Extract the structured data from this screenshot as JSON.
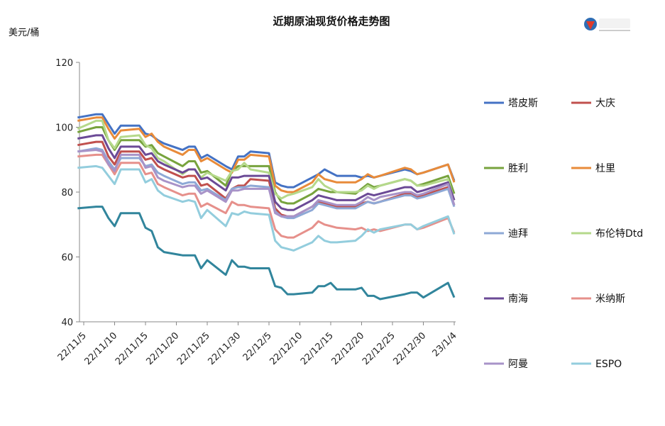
{
  "chart_data": {
    "type": "line",
    "title": "近期原油现货价格走势图",
    "ylabel": "美元/桶",
    "xlabel": "",
    "ylim": [
      40,
      120
    ],
    "y_ticks": [
      "40",
      "60",
      "80",
      "100",
      "120"
    ],
    "x_ticks": [
      "22/11/5",
      "22/11/10",
      "22/11/15",
      "22/11/20",
      "22/11/25",
      "22/11/30",
      "22/12/5",
      "22/12/10",
      "22/12/15",
      "22/12/20",
      "22/12/25",
      "22/12/30",
      "23/1/4"
    ],
    "grid": false,
    "legend_position": "right",
    "x": [
      "2022-11-04",
      "2022-11-07",
      "2022-11-08",
      "2022-11-09",
      "2022-11-10",
      "2022-11-11",
      "2022-11-14",
      "2022-11-15",
      "2022-11-16",
      "2022-11-17",
      "2022-11-18",
      "2022-11-21",
      "2022-11-22",
      "2022-11-23",
      "2022-11-24",
      "2022-11-25",
      "2022-11-28",
      "2022-11-29",
      "2022-11-30",
      "2022-12-01",
      "2022-12-02",
      "2022-12-05",
      "2022-12-06",
      "2022-12-07",
      "2022-12-08",
      "2022-12-09",
      "2022-12-12",
      "2022-12-13",
      "2022-12-14",
      "2022-12-15",
      "2022-12-16",
      "2022-12-19",
      "2022-12-20",
      "2022-12-21",
      "2022-12-22",
      "2022-12-23",
      "2022-12-27",
      "2022-12-28",
      "2022-12-29",
      "2022-12-30",
      "2023-01-03",
      "2023-01-04"
    ],
    "series": [
      {
        "name": "塔皮斯",
        "color": "#4472c4",
        "values": [
          103,
          104,
          104,
          101,
          98,
          100.5,
          100.5,
          98,
          97.5,
          96,
          95,
          93,
          94,
          94,
          90.5,
          91.5,
          88,
          87,
          91,
          91,
          92.5,
          92,
          83,
          82,
          81.5,
          81.5,
          84.5,
          85.5,
          87,
          86,
          85,
          85,
          84.5,
          85,
          84.5,
          85,
          87,
          86.5,
          85.5,
          86,
          88.5,
          83.5
        ]
      },
      {
        "name": "大庆",
        "color": "#c0504d",
        "values": [
          94.5,
          95.5,
          95.5,
          91,
          88.5,
          92.5,
          92.5,
          90,
          90.5,
          88,
          87,
          84.5,
          85,
          85,
          82,
          82.5,
          78,
          81,
          82,
          82,
          84,
          83.5,
          75,
          73,
          72.5,
          72.5,
          75.5,
          77,
          76.5,
          76,
          75.5,
          75.5,
          76.5,
          77,
          76.5,
          77,
          79.5,
          79.5,
          78.5,
          79,
          81.5,
          76
        ]
      },
      {
        "name": "胜利",
        "color": "#77a33d",
        "values": [
          98.5,
          100,
          100,
          96,
          93,
          96,
          96,
          94,
          94.5,
          92,
          91,
          88,
          89.5,
          89.5,
          86,
          86.5,
          82,
          86.5,
          88,
          88,
          88,
          88,
          80,
          77,
          76.5,
          76.5,
          79.5,
          81,
          80.5,
          80,
          80,
          79.5,
          81,
          82.5,
          81.5,
          82,
          84,
          83.5,
          82,
          82.5,
          85,
          79.5
        ]
      },
      {
        "name": "杜里",
        "color": "#e88b3a",
        "values": [
          102,
          103,
          103,
          99.5,
          96.5,
          99,
          99.5,
          97,
          98,
          95.5,
          94,
          91.5,
          93,
          93,
          89.5,
          90.5,
          87,
          86,
          90,
          90,
          91.5,
          91,
          82,
          80.5,
          80,
          80,
          83,
          85.5,
          84,
          83.5,
          83,
          83,
          84,
          85.5,
          84.5,
          85,
          87.5,
          87,
          85.5,
          86,
          88.5,
          83
        ]
      },
      {
        "name": "迪拜",
        "color": "#8ea9d6",
        "values": [
          92.5,
          93.5,
          93,
          89.5,
          87,
          90.5,
          90.5,
          88,
          88.5,
          86,
          85,
          82.5,
          83,
          83,
          80.5,
          81,
          77.5,
          81,
          81.5,
          81.5,
          82,
          81.5,
          74,
          72.5,
          72,
          72,
          74.5,
          76.5,
          76,
          75.5,
          75,
          75,
          76,
          77,
          76.5,
          77,
          79,
          79,
          78,
          78.5,
          81,
          75.5
        ]
      },
      {
        "name": "布伦特Dtd",
        "color": "#b5d98b",
        "values": [
          99.5,
          102,
          102,
          96,
          93.5,
          97,
          97.5,
          94.5,
          93.5,
          90.5,
          89.5,
          85.5,
          87,
          87,
          84.5,
          86,
          83.5,
          86.5,
          87,
          89,
          87,
          86,
          79.5,
          78,
          79,
          79.5,
          81.5,
          84,
          82,
          81,
          80,
          80,
          80.5,
          82,
          81,
          82,
          84,
          83.5,
          82,
          82,
          84,
          77.5
        ]
      },
      {
        "name": "南海",
        "color": "#6b4a96",
        "values": [
          96.5,
          97.5,
          97.5,
          93.5,
          90.5,
          94,
          94,
          91.5,
          92,
          89.5,
          88.5,
          86,
          87,
          87,
          84,
          84.5,
          80.5,
          84.5,
          84.5,
          85,
          85,
          85,
          77,
          75,
          74.5,
          74.5,
          77.5,
          79,
          78.5,
          78,
          77.5,
          77.5,
          78.5,
          79.5,
          79,
          79.5,
          81.5,
          81.5,
          80,
          80.5,
          83,
          77.5
        ]
      },
      {
        "name": "米纳斯",
        "color": "#e6908b",
        "values": [
          91,
          91.5,
          91.5,
          88.5,
          85.5,
          89,
          89,
          85.5,
          86,
          82.5,
          81.5,
          79,
          79.5,
          79.5,
          75.5,
          76.5,
          73.5,
          77,
          76,
          76,
          75.5,
          75,
          68.5,
          66.5,
          66,
          66,
          69,
          71,
          70,
          69.5,
          69,
          68.5,
          69,
          68,
          68.5,
          68,
          70,
          70,
          68.5,
          69,
          72,
          67.5
        ]
      },
      {
        "name": "阿曼",
        "color": "#a893c8",
        "values": [
          92.5,
          93,
          92.5,
          88.5,
          86.5,
          91.5,
          91.5,
          87.5,
          88,
          84.5,
          83.5,
          81.5,
          82,
          82,
          79.5,
          80.5,
          77,
          80.5,
          80.5,
          81,
          81,
          81,
          73.5,
          72.5,
          72.5,
          72.5,
          75.5,
          77.5,
          77,
          76.5,
          76,
          76,
          77,
          78.5,
          77.5,
          78.5,
          80,
          80,
          79,
          79.5,
          82.5,
          76
        ]
      },
      {
        "name": "ESPO",
        "color": "#93cddd",
        "values": [
          87.5,
          88,
          87.5,
          85,
          82.5,
          87,
          87,
          83,
          84,
          80.5,
          79,
          77,
          77.5,
          77,
          72,
          74.5,
          69.5,
          73.5,
          73,
          74,
          73.5,
          73,
          65,
          63,
          62.5,
          62,
          64.5,
          66.5,
          65,
          64.5,
          64.5,
          65,
          66.5,
          68.5,
          67.5,
          68.5,
          70,
          70,
          68.5,
          69.5,
          72.5,
          67
        ]
      },
      {
        "name": "",
        "color": "#31859c",
        "values": [
          75,
          75.5,
          75.5,
          72,
          69.5,
          73.5,
          73.5,
          69,
          68,
          63,
          61.5,
          60.5,
          60.5,
          60.5,
          56.5,
          59,
          54.5,
          59,
          57,
          57,
          56.5,
          56.5,
          51,
          50.5,
          48.5,
          48.5,
          49,
          51,
          51,
          52,
          50,
          50,
          50.5,
          48,
          48,
          47,
          48.5,
          49,
          49,
          47.5,
          52,
          47.5
        ]
      }
    ]
  }
}
